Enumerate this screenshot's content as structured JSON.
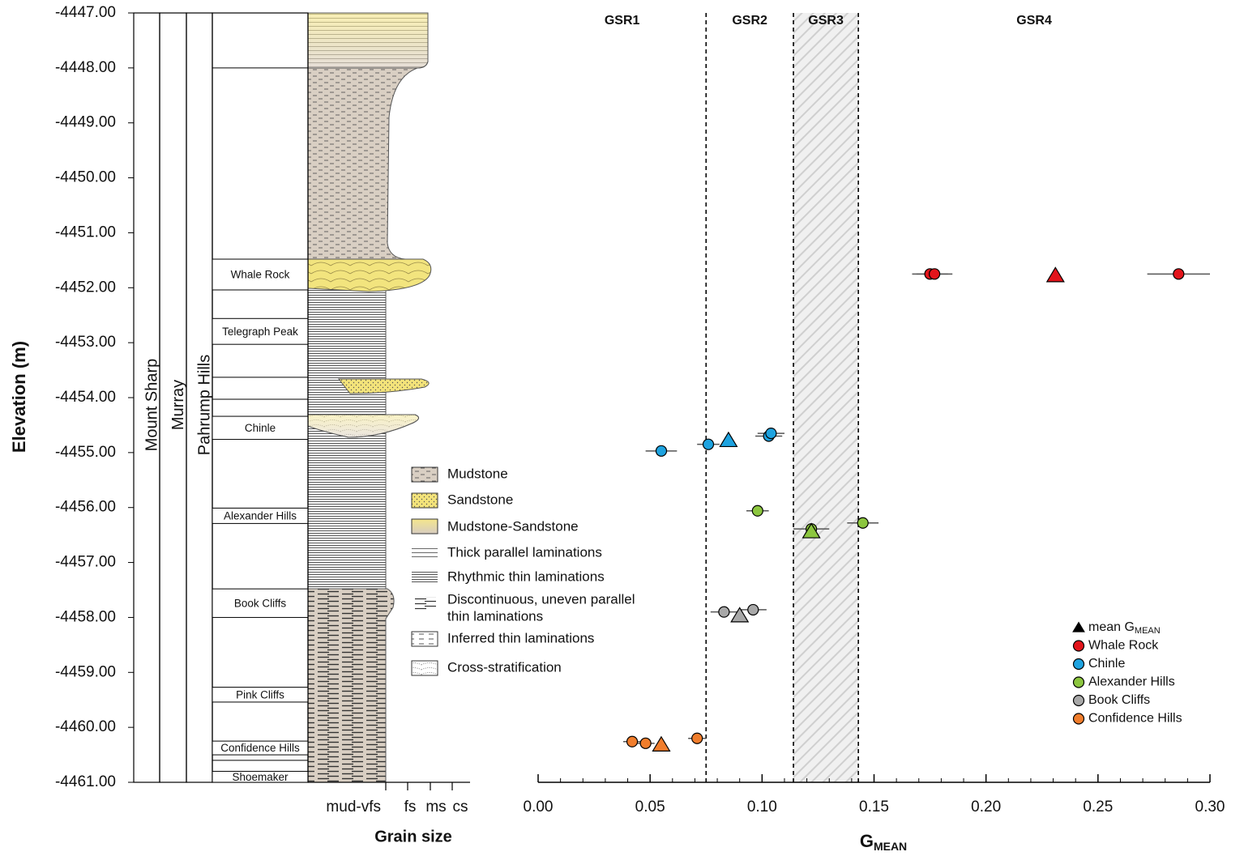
{
  "chart_data": [
    {
      "type": "strat-column",
      "ylabel": "Elevation (m)",
      "ylim": [
        -4461,
        -4447
      ],
      "yticks": [
        {
          "value": -4447,
          "label": "-4447.00"
        },
        {
          "value": -4448,
          "label": "-4448.00"
        },
        {
          "value": -4449,
          "label": "-4449.00"
        },
        {
          "value": -4450,
          "label": "-4450.00"
        },
        {
          "value": -4451,
          "label": "-4451.00"
        },
        {
          "value": -4452,
          "label": "-4452.00"
        },
        {
          "value": -4453,
          "label": "-4453.00"
        },
        {
          "value": -4454,
          "label": "-4454.00"
        },
        {
          "value": -4455,
          "label": "-4455.00"
        },
        {
          "value": -4456,
          "label": "-4456.00"
        },
        {
          "value": -4457,
          "label": "-4457.00"
        },
        {
          "value": -4458,
          "label": "-4458.00"
        },
        {
          "value": -4459,
          "label": "-4459.00"
        },
        {
          "value": -4460,
          "label": "-4460.00"
        },
        {
          "value": -4461,
          "label": "-4461.00"
        }
      ],
      "units": [
        "Mount Sharp",
        "Murray",
        "Pahrump Hills"
      ],
      "members": [
        {
          "name": "Whale Rock",
          "top": -4451.48,
          "bottom": -4452.04
        },
        {
          "name": "Telegraph Peak",
          "top": -4452.56,
          "bottom": -4453.03
        },
        {
          "name": "Chinle",
          "top": -4454.34,
          "bottom": -4454.76
        },
        {
          "name": "Alexander Hills",
          "top": -4456.01,
          "bottom": -4456.29
        },
        {
          "name": "Book Cliffs",
          "top": -4457.48,
          "bottom": -4458.0
        },
        {
          "name": "Pink Cliffs",
          "top": -4459.27,
          "bottom": -4459.54
        },
        {
          "name": "Confidence Hills",
          "top": -4460.25,
          "bottom": -4460.5
        },
        {
          "name": "Shoemaker",
          "top": -4460.8,
          "bottom": -4461
        }
      ],
      "boundaries": [
        -4448,
        -4453.63,
        -4454.03,
        -4460.6
      ],
      "xlabel": "Grain size",
      "grain_sizes": [
        "mud-vfs",
        "fs",
        "ms",
        "cs"
      ],
      "legend": [
        "Mudstone",
        "Sandstone",
        "Mudstone-Sandstone",
        "Thick parallel laminations",
        "Rhythmic thin laminations",
        [
          "Discontinuous, uneven parallel",
          "thin laminations"
        ],
        "Inferred thin laminations",
        "Cross-stratification"
      ]
    },
    {
      "type": "scatter",
      "xlabel": {
        "text": "G",
        "subscript": "MEAN"
      },
      "xlim": [
        0,
        0.3
      ],
      "xticks": [
        {
          "value": 0,
          "label": "0.00"
        },
        {
          "value": 0.05,
          "label": "0.05"
        },
        {
          "value": 0.1,
          "label": "0.10"
        },
        {
          "value": 0.15,
          "label": "0.15"
        },
        {
          "value": 0.2,
          "label": "0.20"
        },
        {
          "value": 0.25,
          "label": "0.25"
        },
        {
          "value": 0.3,
          "label": "0.30"
        }
      ],
      "xminorticks": [
        0.01,
        0.02,
        0.03,
        0.04,
        0.06,
        0.07,
        0.08,
        0.09,
        0.11,
        0.12,
        0.13,
        0.14,
        0.16,
        0.17,
        0.18,
        0.19,
        0.21,
        0.22,
        0.23,
        0.24,
        0.26,
        0.27,
        0.28,
        0.29
      ],
      "zones": [
        "GSR1",
        "GSR2",
        "GSR3",
        "GSR4"
      ],
      "thresholds": [
        0.075,
        0.114,
        0.143
      ],
      "hatched_zone": 2,
      "mean_label": {
        "text": "mean G",
        "subscript": "MEAN"
      },
      "legend_position": "lower right",
      "series": [
        {
          "name": "Whale Rock",
          "color": "#e3141b",
          "x": [
            0.175,
            0.177,
            0.286
          ],
          "y": [
            -4451.75,
            -4451.75,
            -4451.75
          ],
          "xerr": [
            0.008,
            0.008,
            0.014
          ],
          "mean_x": 0.231,
          "mean_y": -4451.78
        },
        {
          "name": "Chinle",
          "color": "#1ea3e0",
          "x": [
            0.055,
            0.076,
            0.103,
            0.104
          ],
          "y": [
            -4454.97,
            -4454.85,
            -4454.7,
            -4454.65
          ],
          "xerr": [
            0.007,
            0.005,
            0.006,
            0.006
          ],
          "mean_x": 0.085,
          "mean_y": -4454.78
        },
        {
          "name": "Alexander Hills",
          "color": "#8cc63f",
          "x": [
            0.098,
            0.122,
            0.145
          ],
          "y": [
            -4456.06,
            -4456.39,
            -4456.28
          ],
          "xerr": [
            0.005,
            0.008,
            0.007
          ],
          "mean_x": 0.122,
          "mean_y": -4456.44
        },
        {
          "name": "Book Cliffs",
          "color": "#a8a8a8",
          "x": [
            0.083,
            0.096
          ],
          "y": [
            -4457.9,
            -4457.86
          ],
          "xerr": [
            0.006,
            0.006
          ],
          "mean_x": 0.09,
          "mean_y": -4457.97
        },
        {
          "name": "Confidence Hills",
          "color": "#f07d2c",
          "x": [
            0.042,
            0.048,
            0.071
          ],
          "y": [
            -4460.26,
            -4460.29,
            -4460.2
          ],
          "xerr": [
            0.004,
            0.004,
            0.004
          ],
          "mean_x": 0.055,
          "mean_y": -4460.32
        }
      ]
    }
  ]
}
